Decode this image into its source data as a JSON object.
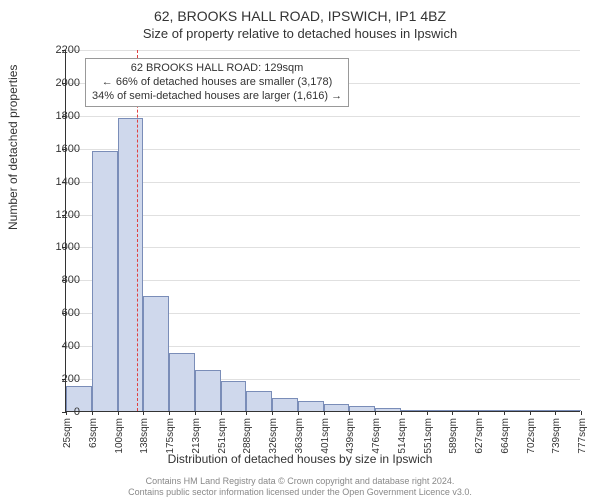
{
  "title_line1": "62, BROOKS HALL ROAD, IPSWICH, IP1 4BZ",
  "title_line2": "Size of property relative to detached houses in Ipswich",
  "ylabel": "Number of detached properties",
  "xlabel": "Distribution of detached houses by size in Ipswich",
  "footer_line1": "Contains HM Land Registry data © Crown copyright and database right 2024.",
  "footer_line2": "Contains public sector information licensed under the Open Government Licence v3.0.",
  "chart": {
    "type": "histogram",
    "ylim": [
      0,
      2200
    ],
    "ytick_step": 200,
    "yticks": [
      0,
      200,
      400,
      600,
      800,
      1000,
      1200,
      1400,
      1600,
      1800,
      2000,
      2200
    ],
    "bar_fill": "#cfd8ec",
    "bar_stroke": "#7a8db8",
    "grid_color": "#e0e0e0",
    "background_color": "#ffffff",
    "marker_color": "#e04040",
    "x_start": 25,
    "bin_width_sqm": 37.5,
    "xtick_labels": [
      "25sqm",
      "63sqm",
      "100sqm",
      "138sqm",
      "175sqm",
      "213sqm",
      "251sqm",
      "288sqm",
      "326sqm",
      "363sqm",
      "401sqm",
      "439sqm",
      "476sqm",
      "514sqm",
      "551sqm",
      "589sqm",
      "627sqm",
      "664sqm",
      "702sqm",
      "739sqm",
      "777sqm"
    ],
    "bar_values": [
      150,
      1580,
      1780,
      700,
      350,
      250,
      180,
      120,
      80,
      60,
      40,
      30,
      20,
      0,
      0,
      0,
      0,
      0,
      0,
      0
    ],
    "marker_value_sqm": 129,
    "annotation": {
      "line1": "62 BROOKS HALL ROAD: 129sqm",
      "line2": "← 66% of detached houses are smaller (3,178)",
      "line3": "34% of semi-detached houses are larger (1,616) →"
    }
  }
}
